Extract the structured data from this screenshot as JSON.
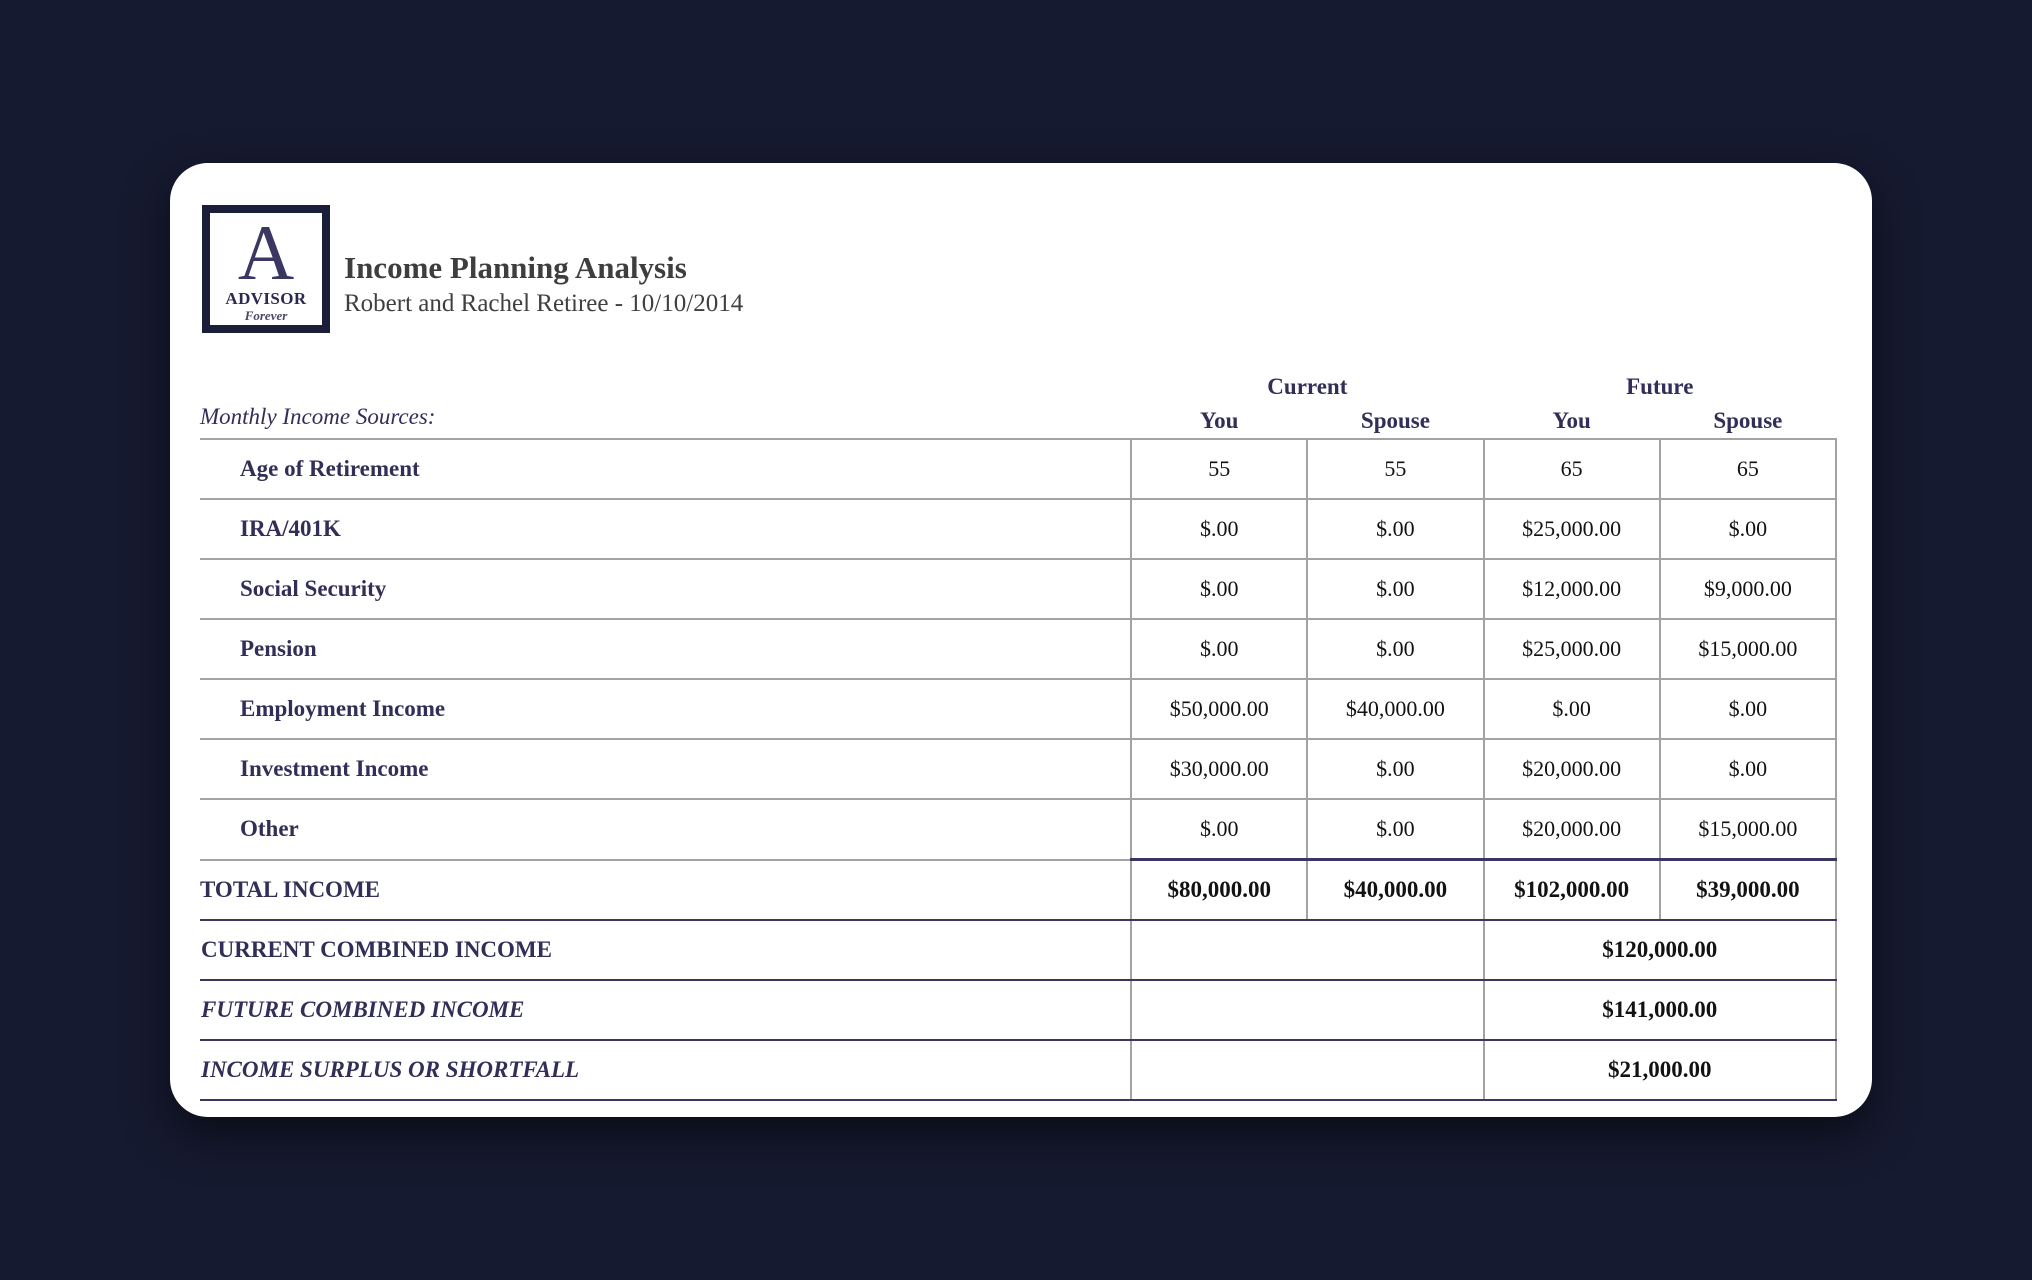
{
  "logo": {
    "letter": "A",
    "name": "ADVISOR",
    "tagline": "Forever"
  },
  "header": {
    "title": "Income Planning Analysis",
    "subtitle": "Robert and Rachel Retiree - 10/10/2014"
  },
  "colors": {
    "page_background": "#161a30",
    "card_background": "#ffffff",
    "brand_navy": "#312e58",
    "value_text": "#121212",
    "grid_line_gray": "#a3a3a3",
    "grid_line_navy": "#39365f"
  },
  "table": {
    "section_label": "Monthly Income Sources:",
    "col_groups": {
      "current": "Current",
      "future": "Future"
    },
    "col_headers": [
      "You",
      "Spouse",
      "You",
      "Spouse"
    ],
    "income_rows": [
      {
        "label": "Age of Retirement",
        "values": [
          "55",
          "55",
          "65",
          "65"
        ]
      },
      {
        "label": "IRA/401K",
        "values": [
          "$.00",
          "$.00",
          "$25,000.00",
          "$.00"
        ]
      },
      {
        "label": "Social Security",
        "values": [
          "$.00",
          "$.00",
          "$12,000.00",
          "$9,000.00"
        ]
      },
      {
        "label": "Pension",
        "values": [
          "$.00",
          "$.00",
          "$25,000.00",
          "$15,000.00"
        ]
      },
      {
        "label": "Employment Income",
        "values": [
          "$50,000.00",
          "$40,000.00",
          "$.00",
          "$.00"
        ]
      },
      {
        "label": "Investment Income",
        "values": [
          "$30,000.00",
          "$.00",
          "$20,000.00",
          "$.00"
        ]
      },
      {
        "label": "Other",
        "values": [
          "$.00",
          "$.00",
          "$20,000.00",
          "$15,000.00"
        ]
      }
    ],
    "total_row": {
      "label": "TOTAL INCOME",
      "values": [
        "$80,000.00",
        "$40,000.00",
        "$102,000.00",
        "$39,000.00"
      ]
    },
    "summary_rows": [
      {
        "label": "CURRENT COMBINED INCOME",
        "value": "$120,000.00"
      },
      {
        "label": "FUTURE COMBINED INCOME",
        "value": "$141,000.00"
      },
      {
        "label": "INCOME SURPLUS OR SHORTFALL",
        "value": "$21,000.00"
      }
    ]
  }
}
